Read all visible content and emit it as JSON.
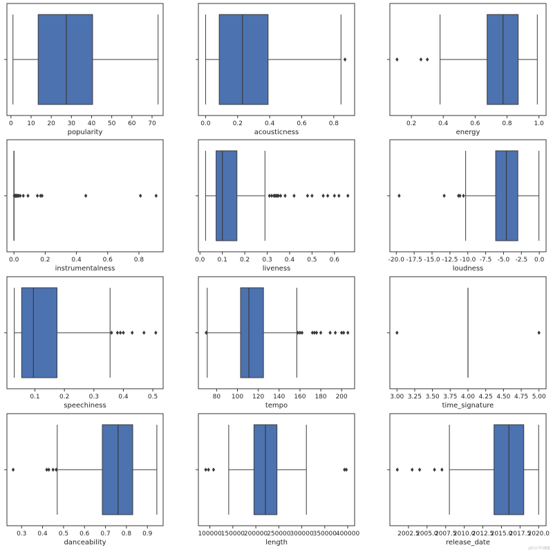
{
  "chart_data": [
    {
      "type": "box",
      "xlabel": "popularity",
      "xlim": [
        -2,
        75.5
      ],
      "ticks": [
        0,
        10,
        20,
        30,
        40,
        50,
        60,
        70
      ],
      "tick_labels": [
        "0",
        "10",
        "20",
        "30",
        "40",
        "50",
        "60",
        "70"
      ],
      "stats": {
        "whisker_low": 1,
        "q1": 13.5,
        "median": 27.5,
        "q3": 40.5,
        "whisker_high": 73
      },
      "outliers": []
    },
    {
      "type": "box",
      "xlabel": "acousticness",
      "xlim": [
        -0.045,
        0.93
      ],
      "ticks": [
        0.0,
        0.2,
        0.4,
        0.6,
        0.8
      ],
      "tick_labels": [
        "0.0",
        "0.2",
        "0.4",
        "0.6",
        "0.8"
      ],
      "stats": {
        "whisker_low": 0.0,
        "q1": 0.085,
        "median": 0.23,
        "q3": 0.39,
        "whisker_high": 0.845
      },
      "outliers": [
        0.87
      ]
    },
    {
      "type": "box",
      "xlabel": "energy",
      "xlim": [
        0.065,
        1.045
      ],
      "ticks": [
        0.2,
        0.4,
        0.6,
        0.8,
        1.0
      ],
      "tick_labels": [
        "0.2",
        "0.4",
        "0.6",
        "0.8",
        "1.0"
      ],
      "stats": {
        "whisker_low": 0.38,
        "q1": 0.675,
        "median": 0.775,
        "q3": 0.87,
        "whisker_high": 0.99
      },
      "outliers": [
        0.11,
        0.26,
        0.3
      ]
    },
    {
      "type": "box",
      "xlabel": "instrumentalness",
      "xlim": [
        -0.045,
        0.955
      ],
      "ticks": [
        0.0,
        0.2,
        0.4,
        0.6,
        0.8
      ],
      "tick_labels": [
        "0.0",
        "0.2",
        "0.4",
        "0.6",
        "0.8"
      ],
      "stats": {
        "whisker_low": 0.0,
        "q1": 0.0,
        "median": 0.0,
        "q3": 0.0,
        "whisker_high": 0.0
      },
      "outliers": [
        0.002,
        0.005,
        0.008,
        0.012,
        0.015,
        0.02,
        0.025,
        0.03,
        0.04,
        0.06,
        0.09,
        0.15,
        0.17,
        0.18,
        0.46,
        0.81,
        0.91
      ]
    },
    {
      "type": "box",
      "xlabel": "liveness",
      "xlim": [
        -0.007,
        0.69
      ],
      "ticks": [
        0.0,
        0.1,
        0.2,
        0.3,
        0.4,
        0.5,
        0.6
      ],
      "tick_labels": [
        "0.0",
        "0.1",
        "0.2",
        "0.3",
        "0.4",
        "0.5",
        "0.6"
      ],
      "stats": {
        "whisker_low": 0.025,
        "q1": 0.072,
        "median": 0.1,
        "q3": 0.165,
        "whisker_high": 0.29
      },
      "outliers": [
        0.31,
        0.32,
        0.33,
        0.335,
        0.34,
        0.345,
        0.35,
        0.36,
        0.38,
        0.42,
        0.48,
        0.5,
        0.55,
        0.57,
        0.6,
        0.62,
        0.66
      ]
    },
    {
      "type": "box",
      "xlabel": "loudness",
      "xlim": [
        -20.9,
        0.95
      ],
      "ticks": [
        -20.0,
        -17.5,
        -15.0,
        -12.5,
        -10.0,
        -7.5,
        -5.0,
        -2.5,
        0.0
      ],
      "tick_labels": [
        "-20.0",
        "-17.5",
        "-15.0",
        "-12.5",
        "-10.0",
        "-7.5",
        "-5.0",
        "-2.5",
        "0.0"
      ],
      "stats": {
        "whisker_low": -10.3,
        "q1": -6.1,
        "median": -4.6,
        "q3": -3.0,
        "whisker_high": -0.05
      },
      "outliers": [
        -19.6,
        -13.3,
        -11.3,
        -11.1,
        -10.6
      ]
    },
    {
      "type": "box",
      "xlabel": "speechiness",
      "xlim": [
        0.005,
        0.535
      ],
      "ticks": [
        0.1,
        0.2,
        0.3,
        0.4,
        0.5
      ],
      "tick_labels": [
        "0.1",
        "0.2",
        "0.3",
        "0.4",
        "0.5"
      ],
      "stats": {
        "whisker_low": 0.03,
        "q1": 0.055,
        "median": 0.095,
        "q3": 0.175,
        "whisker_high": 0.355
      },
      "outliers": [
        0.36,
        0.38,
        0.39,
        0.4,
        0.43,
        0.47,
        0.51
      ]
    },
    {
      "type": "box",
      "xlabel": "tempo",
      "xlim": [
        62.5,
        212.5
      ],
      "ticks": [
        80,
        100,
        120,
        140,
        160,
        180,
        200
      ],
      "tick_labels": [
        "80",
        "100",
        "120",
        "140",
        "160",
        "180",
        "200"
      ],
      "stats": {
        "whisker_low": 71,
        "q1": 103,
        "median": 111,
        "q3": 125,
        "whisker_high": 157
      },
      "outliers": [
        70,
        158,
        160,
        162,
        172,
        174,
        176,
        180,
        189,
        194,
        200,
        202,
        206
      ]
    },
    {
      "type": "box",
      "xlabel": "time_signature",
      "xlim": [
        2.9,
        5.1
      ],
      "ticks": [
        3.0,
        3.25,
        3.5,
        3.75,
        4.0,
        4.25,
        4.5,
        4.75,
        5.0
      ],
      "tick_labels": [
        "3.00",
        "3.25",
        "3.50",
        "3.75",
        "4.00",
        "4.25",
        "4.50",
        "4.75",
        "5.00"
      ],
      "stats": {
        "whisker_low": 4,
        "q1": 4,
        "median": 4,
        "q3": 4,
        "whisker_high": 4
      },
      "outliers": [
        3,
        5
      ]
    },
    {
      "type": "box",
      "xlabel": "danceability",
      "xlim": [
        0.23,
        0.975
      ],
      "ticks": [
        0.3,
        0.4,
        0.5,
        0.6,
        0.7,
        0.8,
        0.9
      ],
      "tick_labels": [
        "0.3",
        "0.4",
        "0.5",
        "0.6",
        "0.7",
        "0.8",
        "0.9"
      ],
      "stats": {
        "whisker_low": 0.47,
        "q1": 0.685,
        "median": 0.76,
        "q3": 0.83,
        "whisker_high": 0.945
      },
      "outliers": [
        0.26,
        0.42,
        0.43,
        0.45,
        0.465
      ]
    },
    {
      "type": "box",
      "xlabel": "length",
      "xlim": [
        75000,
        415000
      ],
      "ticks": [
        100000,
        150000,
        200000,
        250000,
        300000,
        350000,
        400000
      ],
      "tick_labels": [
        "100000",
        "150000",
        "200000",
        "250000",
        "300000",
        "350000",
        "400000"
      ],
      "stats": {
        "whisker_low": 141000,
        "q1": 196000,
        "median": 221000,
        "q3": 246000,
        "whisker_high": 310000
      },
      "outliers": [
        91000,
        97000,
        108000,
        393000,
        397000
      ]
    },
    {
      "type": "box",
      "xlabel": "release_date",
      "xlim": [
        2000.0,
        2021.0
      ],
      "ticks": [
        2002.5,
        2005.0,
        2007.5,
        2010.0,
        2012.5,
        2015.0,
        2017.5,
        2020.0
      ],
      "tick_labels": [
        "2002.5",
        "2005.0",
        "2007.5",
        "2010.0",
        "2012.5",
        "2015.0",
        "2017.5",
        "2020.0"
      ],
      "stats": {
        "whisker_low": 2008,
        "q1": 2014,
        "median": 2016,
        "q3": 2018,
        "whisker_high": 2020
      },
      "outliers": [
        2001,
        2003,
        2004,
        2006,
        2007
      ]
    }
  ],
  "watermark": "@51CTO博客"
}
